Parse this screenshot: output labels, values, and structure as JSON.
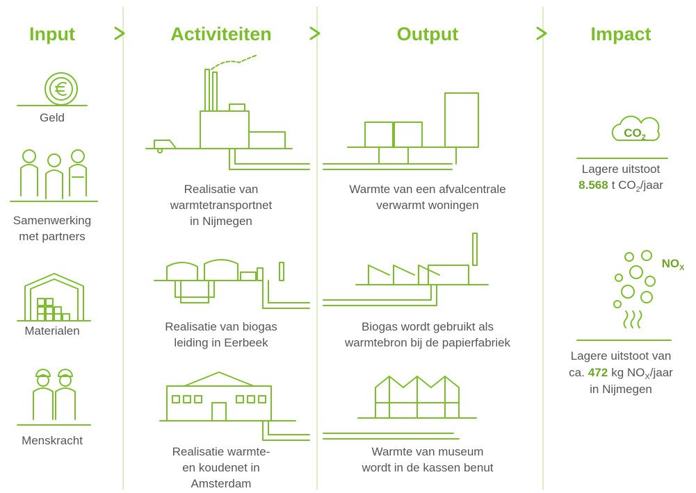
{
  "headers": [
    "Input",
    "Activiteiten",
    "Output",
    "Impact"
  ],
  "inputs": [
    {
      "lines": [
        "Geld"
      ]
    },
    {
      "lines": [
        "Samenwerking",
        "met partners"
      ]
    },
    {
      "lines": [
        "Materialen"
      ]
    },
    {
      "lines": [
        "Menskracht"
      ]
    }
  ],
  "activities": [
    {
      "lines": [
        "Realisatie van",
        "warmtetransportnet",
        "in Nijmegen"
      ]
    },
    {
      "lines": [
        "Realisatie van biogas",
        "leiding in Eerbeek"
      ]
    },
    {
      "lines": [
        "Realisatie warmte-",
        "en koudenet in",
        "Amsterdam"
      ]
    }
  ],
  "outputs": [
    {
      "lines": [
        "Warmte van een afvalcentrale",
        "verwarmt woningen"
      ]
    },
    {
      "lines": [
        "Biogas wordt gebruikt als",
        "warmtebron bij de papierfabriek"
      ]
    },
    {
      "lines": [
        "Warmte van museum",
        "wordt in de kassen benut"
      ]
    }
  ],
  "impact": [
    {
      "icon_label": "CO",
      "icon_sub": "2",
      "label": "Lagere uitstoot",
      "value": "8.568",
      "unit": "t CO",
      "unit_sub": "2",
      "unit_suffix": "/jaar"
    },
    {
      "icon_label": "NO",
      "icon_sub": "X",
      "label": "Lagere uitstoot van",
      "prefix": "ca.",
      "value": "472",
      "unit": "kg NO",
      "unit_sub": "X",
      "unit_suffix": "/jaar",
      "tail": "in Nijmegen"
    }
  ]
}
